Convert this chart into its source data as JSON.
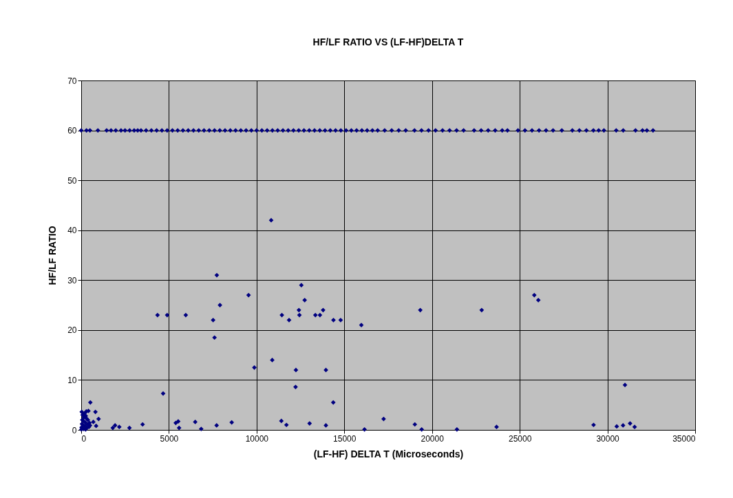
{
  "chart_data": {
    "type": "scatter",
    "title": "HF/LF RATIO VS (LF-HF)DELTA T",
    "xlabel": "(LF-HF) DELTA T (Microseconds)",
    "ylabel": "HF/LF RATIO",
    "xlim": [
      0,
      35000
    ],
    "xticks": [
      0,
      5000,
      10000,
      15000,
      20000,
      25000,
      30000,
      35000
    ],
    "ylim": [
      0,
      70
    ],
    "yticks": [
      0,
      10,
      20,
      30,
      40,
      50,
      60,
      70
    ],
    "grid": true,
    "marker": "diamond",
    "series": [
      {
        "color": "#000080",
        "x": [
          0,
          300,
          500,
          950,
          1450,
          1700,
          1970,
          2270,
          2500,
          2760,
          3020,
          3220,
          3410,
          3700,
          4000,
          4300,
          4600,
          4900,
          5200,
          5500,
          5800,
          6100,
          6400,
          6700,
          7000,
          7300,
          7600,
          7900,
          8200,
          8500,
          8800,
          9100,
          9400,
          9700,
          10000,
          10300,
          10600,
          10900,
          11200,
          11500,
          11800,
          12100,
          12400,
          12700,
          13000,
          13300,
          13600,
          13900,
          14200,
          14500,
          14800,
          15100,
          15400,
          15700,
          16000,
          16300,
          16600,
          16900,
          17300,
          17700,
          18100,
          18500,
          19000,
          19400,
          19800,
          20200,
          20600,
          21000,
          21400,
          21800,
          22400,
          22800,
          23200,
          23600,
          24000,
          24300,
          24900,
          25300,
          25700,
          26100,
          26500,
          26900,
          27400,
          28000,
          28400,
          28800,
          29200,
          29500,
          29800,
          30500,
          30900,
          31600,
          32000,
          32250,
          32600,
          7730,
          12550,
          9540,
          7910,
          12740,
          12410,
          13790,
          7520,
          11440,
          11850,
          12440,
          13350,
          13610,
          14380,
          14790,
          15970,
          19330,
          7600,
          10890,
          9870,
          12240,
          13950,
          12220,
          14370,
          7720,
          8580,
          11410,
          11700,
          13020,
          13950,
          16150,
          17240,
          19020,
          19410,
          10830,
          4350,
          4900,
          5960,
          4670,
          520,
          810,
          990,
          850,
          690,
          1800,
          1930,
          2170,
          2750,
          3500,
          5390,
          5530,
          5580,
          6500,
          6840,
          22830,
          25830,
          26060,
          31000,
          21420,
          23680,
          29210,
          30530,
          30890,
          31290,
          31550,
          20,
          40,
          60,
          80,
          100,
          120,
          150,
          180,
          200,
          230,
          260,
          290,
          320,
          350,
          380,
          410,
          440,
          470,
          500,
          30,
          10,
          90,
          140,
          250,
          300
        ],
        "values": [
          60,
          60,
          60,
          60,
          60,
          60,
          60,
          60,
          60,
          60,
          60,
          60,
          60,
          60,
          60,
          60,
          60,
          60,
          60,
          60,
          60,
          60,
          60,
          60,
          60,
          60,
          60,
          60,
          60,
          60,
          60,
          60,
          60,
          60,
          60,
          60,
          60,
          60,
          60,
          60,
          60,
          60,
          60,
          60,
          60,
          60,
          60,
          60,
          60,
          60,
          60,
          60,
          60,
          60,
          60,
          60,
          60,
          60,
          60,
          60,
          60,
          60,
          60,
          60,
          60,
          60,
          60,
          60,
          60,
          60,
          60,
          60,
          60,
          60,
          60,
          60,
          60,
          60,
          60,
          60,
          60,
          60,
          60,
          60,
          60,
          60,
          60,
          60,
          60,
          60,
          60,
          60,
          60,
          60,
          60,
          31,
          29,
          27,
          25,
          26,
          24,
          24,
          22,
          23,
          22,
          23,
          23,
          23,
          22,
          22,
          21,
          24,
          18.5,
          14,
          12.5,
          12,
          12,
          8.6,
          5.5,
          0.9,
          1.5,
          1.8,
          1.0,
          1.3,
          0.9,
          0.1,
          2.2,
          1.1,
          0.1,
          42,
          23,
          23,
          23,
          7.3,
          5.5,
          3.6,
          2.2,
          0.8,
          1.6,
          0.4,
          0.9,
          0.6,
          0.4,
          1.1,
          1.4,
          1.7,
          0.4,
          1.6,
          0.2,
          24,
          27,
          26,
          9,
          0.1,
          0.6,
          1.0,
          0.7,
          0.9,
          1.3,
          0.6,
          0.5,
          1.2,
          2.0,
          3.0,
          0.3,
          1.8,
          2.5,
          3.3,
          0.8,
          1.5,
          2.8,
          3.7,
          0.4,
          1.1,
          2.0,
          3.8,
          0.6,
          1.4,
          0.9,
          3.6,
          0.1,
          1.0,
          0.2,
          0.1,
          2.3
        ]
      }
    ]
  }
}
